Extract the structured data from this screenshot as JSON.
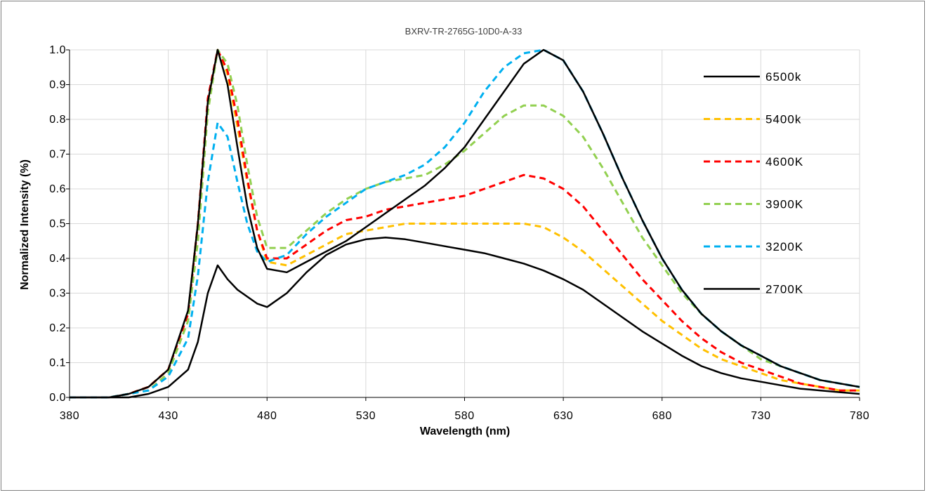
{
  "chart_data": {
    "type": "line",
    "title": "BXRV-TR-2765G-10D0-A-33",
    "xlabel": "Wavelength (nm)",
    "ylabel": "Normalized Intensity (%)",
    "xlim": [
      380,
      780
    ],
    "ylim": [
      0,
      1
    ],
    "xticks": [
      "380",
      "430",
      "480",
      "530",
      "580",
      "630",
      "680",
      "730",
      "780"
    ],
    "yticks": [
      "0.0",
      "0.1",
      "0.2",
      "0.3",
      "0.4",
      "0.5",
      "0.6",
      "0.7",
      "0.8",
      "0.9",
      "1.0"
    ],
    "grid": true,
    "legend_position": "right",
    "series": [
      {
        "name": "6500k",
        "color": "#000000",
        "dash": "solid",
        "x": [
          380,
          400,
          410,
          420,
          430,
          440,
          445,
          450,
          455,
          460,
          465,
          470,
          475,
          480,
          490,
          500,
          510,
          520,
          530,
          540,
          550,
          560,
          570,
          580,
          590,
          600,
          610,
          620,
          630,
          640,
          650,
          660,
          670,
          680,
          690,
          700,
          710,
          720,
          730,
          740,
          750,
          760,
          770,
          780
        ],
        "y": [
          0.0,
          0.0,
          0.01,
          0.03,
          0.08,
          0.25,
          0.5,
          0.85,
          1.0,
          0.9,
          0.72,
          0.55,
          0.43,
          0.37,
          0.36,
          0.39,
          0.42,
          0.45,
          0.49,
          0.53,
          0.57,
          0.61,
          0.66,
          0.72,
          0.8,
          0.88,
          0.96,
          1.0,
          0.97,
          0.88,
          0.76,
          0.63,
          0.51,
          0.4,
          0.31,
          0.24,
          0.19,
          0.15,
          0.12,
          0.09,
          0.07,
          0.05,
          0.04,
          0.03
        ]
      },
      {
        "name": "5400k",
        "color": "#ffc000",
        "dash": "dashed",
        "x": [
          380,
          400,
          410,
          420,
          430,
          440,
          445,
          450,
          455,
          460,
          465,
          470,
          475,
          480,
          490,
          500,
          510,
          520,
          530,
          540,
          550,
          560,
          570,
          580,
          590,
          600,
          610,
          620,
          630,
          640,
          650,
          660,
          670,
          680,
          690,
          700,
          710,
          720,
          730,
          740,
          750,
          760,
          770,
          780
        ],
        "y": [
          0.0,
          0.0,
          0.01,
          0.03,
          0.08,
          0.24,
          0.5,
          0.85,
          1.0,
          0.93,
          0.78,
          0.62,
          0.48,
          0.39,
          0.38,
          0.41,
          0.44,
          0.47,
          0.48,
          0.49,
          0.5,
          0.5,
          0.5,
          0.5,
          0.5,
          0.5,
          0.5,
          0.49,
          0.46,
          0.42,
          0.37,
          0.32,
          0.27,
          0.22,
          0.18,
          0.14,
          0.11,
          0.09,
          0.07,
          0.05,
          0.04,
          0.03,
          0.02,
          0.02
        ]
      },
      {
        "name": "4600K",
        "color": "#ff0000",
        "dash": "dashed",
        "x": [
          380,
          400,
          410,
          420,
          430,
          440,
          445,
          450,
          455,
          460,
          465,
          470,
          475,
          480,
          490,
          500,
          510,
          520,
          530,
          540,
          550,
          560,
          570,
          580,
          590,
          600,
          610,
          620,
          630,
          640,
          650,
          660,
          670,
          680,
          690,
          700,
          710,
          720,
          730,
          740,
          750,
          760,
          770,
          780
        ],
        "y": [
          0.0,
          0.0,
          0.01,
          0.03,
          0.08,
          0.24,
          0.5,
          0.86,
          1.0,
          0.94,
          0.8,
          0.63,
          0.48,
          0.4,
          0.4,
          0.44,
          0.48,
          0.51,
          0.52,
          0.54,
          0.55,
          0.56,
          0.57,
          0.58,
          0.6,
          0.62,
          0.64,
          0.63,
          0.6,
          0.55,
          0.48,
          0.41,
          0.34,
          0.28,
          0.22,
          0.17,
          0.13,
          0.1,
          0.08,
          0.06,
          0.04,
          0.03,
          0.02,
          0.02
        ]
      },
      {
        "name": "3900K",
        "color": "#92d050",
        "dash": "dashed",
        "x": [
          380,
          400,
          410,
          420,
          430,
          440,
          445,
          450,
          455,
          460,
          465,
          470,
          475,
          480,
          490,
          500,
          510,
          520,
          530,
          540,
          550,
          560,
          570,
          580,
          590,
          600,
          610,
          620,
          630,
          640,
          650,
          660,
          670,
          680,
          690,
          700,
          710,
          720,
          730,
          740,
          750,
          760,
          770,
          780
        ],
        "y": [
          0.0,
          0.0,
          0.01,
          0.02,
          0.07,
          0.22,
          0.45,
          0.82,
          1.0,
          0.96,
          0.84,
          0.67,
          0.52,
          0.43,
          0.43,
          0.48,
          0.53,
          0.57,
          0.6,
          0.62,
          0.63,
          0.64,
          0.67,
          0.71,
          0.76,
          0.81,
          0.84,
          0.84,
          0.81,
          0.75,
          0.66,
          0.56,
          0.46,
          0.38,
          0.3,
          0.24,
          0.19,
          0.15,
          0.11,
          0.09,
          0.07,
          0.05,
          0.04,
          0.03
        ]
      },
      {
        "name": "3200K",
        "color": "#00b0f0",
        "dash": "dashed",
        "x": [
          380,
          400,
          410,
          420,
          430,
          440,
          445,
          450,
          455,
          460,
          465,
          470,
          475,
          480,
          490,
          500,
          510,
          520,
          530,
          540,
          550,
          560,
          570,
          580,
          590,
          600,
          610,
          620,
          630,
          640,
          650,
          660,
          670,
          680,
          690,
          700,
          710,
          720,
          730,
          740,
          750,
          760,
          770,
          780
        ],
        "y": [
          0.0,
          0.0,
          0.01,
          0.02,
          0.06,
          0.17,
          0.35,
          0.62,
          0.79,
          0.75,
          0.62,
          0.5,
          0.42,
          0.39,
          0.41,
          0.47,
          0.52,
          0.56,
          0.6,
          0.62,
          0.64,
          0.67,
          0.72,
          0.79,
          0.88,
          0.95,
          0.99,
          1.0,
          0.97,
          0.88,
          0.76,
          0.63,
          0.51,
          0.4,
          0.31,
          0.24,
          0.19,
          0.15,
          0.12,
          0.09,
          0.07,
          0.05,
          0.04,
          0.03
        ]
      },
      {
        "name": "2700K",
        "color": "#000000",
        "dash": "solid",
        "x": [
          380,
          400,
          410,
          420,
          430,
          440,
          445,
          450,
          455,
          460,
          465,
          470,
          475,
          480,
          490,
          500,
          510,
          520,
          530,
          540,
          550,
          560,
          570,
          580,
          590,
          600,
          610,
          620,
          630,
          640,
          650,
          660,
          670,
          680,
          690,
          700,
          710,
          720,
          730,
          740,
          750,
          760,
          770,
          780
        ],
        "y": [
          0.0,
          0.0,
          0.0,
          0.01,
          0.03,
          0.08,
          0.16,
          0.3,
          0.38,
          0.34,
          0.31,
          0.29,
          0.27,
          0.26,
          0.3,
          0.36,
          0.41,
          0.44,
          0.455,
          0.46,
          0.455,
          0.445,
          0.435,
          0.425,
          0.415,
          0.4,
          0.385,
          0.365,
          0.34,
          0.31,
          0.27,
          0.23,
          0.19,
          0.155,
          0.12,
          0.09,
          0.07,
          0.055,
          0.045,
          0.035,
          0.025,
          0.02,
          0.015,
          0.01
        ]
      }
    ]
  }
}
